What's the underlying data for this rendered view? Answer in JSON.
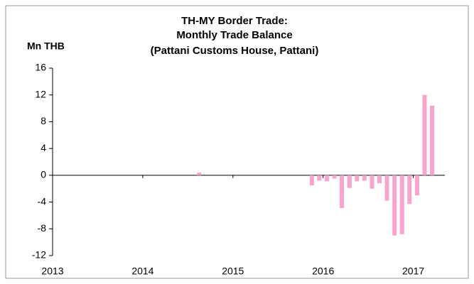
{
  "chart_data": {
    "type": "bar",
    "title": [
      "TH-MY Border Trade:",
      "Monthly Trade Balance",
      "(Pattani Customs House, Pattani)"
    ],
    "y_label": "Mn THB",
    "x": [
      2014.625,
      2015.875,
      2015.958,
      2016.042,
      2016.125,
      2016.208,
      2016.292,
      2016.375,
      2016.458,
      2016.542,
      2016.625,
      2016.708,
      2016.792,
      2016.875,
      2016.958,
      2017.042,
      2017.125,
      2017.208
    ],
    "values": [
      0.4,
      -1.5,
      -0.8,
      -0.9,
      -0.5,
      -4.9,
      -1.9,
      -0.9,
      -0.8,
      -2.0,
      -1.2,
      -3.8,
      -9.0,
      -8.8,
      -4.3,
      -3.0,
      12.0,
      10.4
    ],
    "color": "#f9a3cf",
    "xlim": [
      2013,
      2017.35
    ],
    "xticks": [
      2013,
      2014,
      2015,
      2016,
      2017
    ],
    "ylim": [
      -12,
      16
    ],
    "yticks": [
      -12,
      -8,
      -4,
      0,
      4,
      8,
      12,
      16
    ],
    "grid": false
  }
}
